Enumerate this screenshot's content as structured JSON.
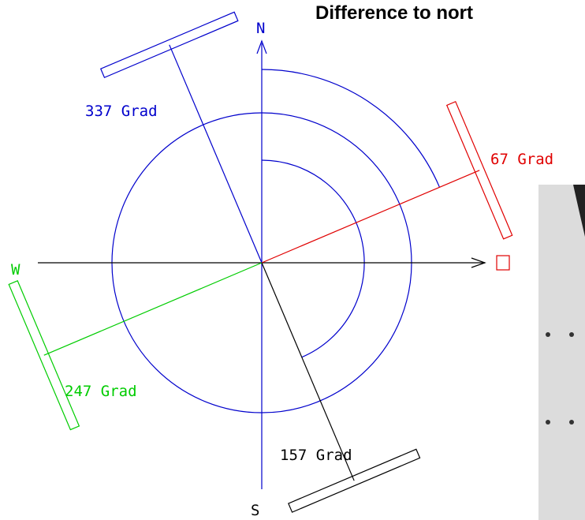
{
  "title": "Difference to nort",
  "compass": {
    "north": "N",
    "south": "S",
    "west": "W"
  },
  "labels": [
    "337 Grad",
    "67 Grad",
    "247 Grad",
    "157 Grad"
  ]
}
